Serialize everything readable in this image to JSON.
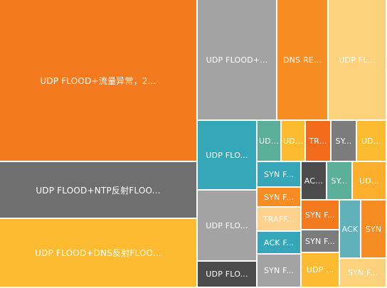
{
  "chart_data": {
    "type": "treemap",
    "colors": {
      "orange_dark": "#F47A20",
      "gray_dark": "#6F6F6F",
      "yellow": "#FCBB30",
      "gray_light": "#A3A3A3",
      "orange": "#F68D22",
      "pale_yellow": "#FDD27C",
      "teal": "#36A7B8",
      "sage": "#5BAE98",
      "mid_gray": "#7C7C7C",
      "peach": "#FCD28C",
      "charcoal": "#4B4B4B",
      "dark_orange": "#F26B1B",
      "amber": "#FBAF2D",
      "teal_gray": "#5FB0B8"
    },
    "tiles": [
      {
        "label": "UDP FLOOD+流量异常，2...",
        "color": "#F47A20",
        "big": true
      },
      {
        "label": "UDP FLOOD+NTP反射FLOO...",
        "color": "#6F6F6F",
        "big": true
      },
      {
        "label": "UDP FLOOD+DNS反射FLOO...",
        "color": "#FCBB30",
        "big": true
      },
      {
        "label": "UDP FLOOD+...",
        "color": "#A3A3A3"
      },
      {
        "label": "DNS RE...",
        "color": "#F68D22"
      },
      {
        "label": "UDP FL...",
        "color": "#FDD27C"
      },
      {
        "label": "UDP FLO...",
        "color": "#36A7B8"
      },
      {
        "label": "UDP FLO...",
        "color": "#A3A3A3"
      },
      {
        "label": "UDP FLO...",
        "color": "#4B4B4B"
      },
      {
        "label": "UD...",
        "color": "#5BAE98"
      },
      {
        "label": "UD...",
        "color": "#FCBB30"
      },
      {
        "label": "TR...",
        "color": "#F26B1B"
      },
      {
        "label": "SY...",
        "color": "#7C7C7C"
      },
      {
        "label": "UD...",
        "color": "#FCBB30"
      },
      {
        "label": "SYN F...",
        "color": "#36A7B8"
      },
      {
        "label": "AC...",
        "color": "#4B4B4B"
      },
      {
        "label": "SY...",
        "color": "#5BAE98"
      },
      {
        "label": "UD...",
        "color": "#FBAF2D"
      },
      {
        "label": "SYN F...",
        "color": "#F68D22"
      },
      {
        "label": "TRAFF...",
        "color": "#FCD28C"
      },
      {
        "label": "SYN F...",
        "color": "#F47A20"
      },
      {
        "label": "ACK",
        "color": "#5FB0B8"
      },
      {
        "label": "SYN",
        "color": "#F68D22"
      },
      {
        "label": "ACK F...",
        "color": "#36A7B8"
      },
      {
        "label": "SYN F...",
        "color": "#7C7C7C"
      },
      {
        "label": "SYN F...",
        "color": "#A3A3A3"
      },
      {
        "label": "UDP ...",
        "color": "#FCBB30"
      },
      {
        "label": "SYN F...",
        "color": "#FDD27C"
      }
    ]
  }
}
